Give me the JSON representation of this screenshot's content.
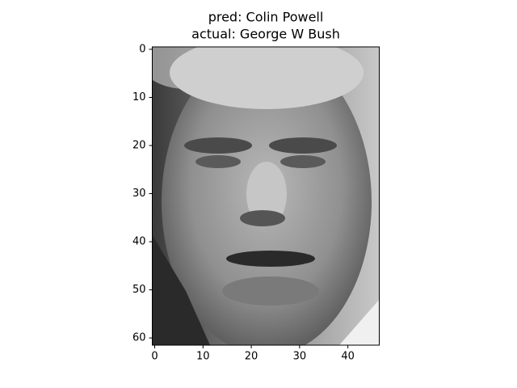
{
  "chart_data": {
    "type": "image",
    "title": [
      "pred: Colin Powell",
      "actual: George W Bush"
    ],
    "xlim": [
      -0.5,
      46.5
    ],
    "ylim": [
      61.5,
      -0.5
    ],
    "xticks": [
      0,
      10,
      20,
      30,
      40
    ],
    "yticks": [
      0,
      10,
      20,
      30,
      40,
      50,
      60
    ],
    "cmap": "gray"
  }
}
